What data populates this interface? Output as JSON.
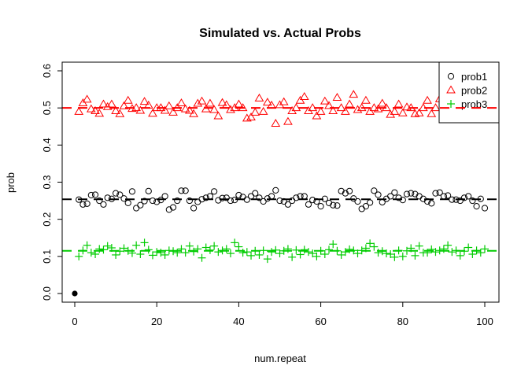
{
  "chart_data": {
    "type": "scatter",
    "title": "Simulated vs. Actual Probs",
    "xlabel": "num.repeat",
    "ylabel": "prob",
    "xlim": [
      0,
      100
    ],
    "ylim": [
      0,
      0.6
    ],
    "xticks": [
      "0",
      "20",
      "40",
      "60",
      "80",
      "100"
    ],
    "yticks": [
      "0.0",
      "0.1",
      "0.2",
      "0.3",
      "0.4",
      "0.5",
      "0.6"
    ],
    "legend_position": "top-right",
    "origin_point": {
      "x": 0,
      "y": 0
    },
    "series": [
      {
        "name": "prob1",
        "color": "#000000",
        "marker": "circle",
        "actual": 0.254,
        "values": [
          0.253,
          0.24,
          0.242,
          0.265,
          0.266,
          0.25,
          0.24,
          0.258,
          0.255,
          0.27,
          0.266,
          0.256,
          0.244,
          0.275,
          0.23,
          0.238,
          0.249,
          0.276,
          0.25,
          0.247,
          0.252,
          0.262,
          0.226,
          0.232,
          0.25,
          0.277,
          0.277,
          0.25,
          0.23,
          0.247,
          0.254,
          0.258,
          0.262,
          0.275,
          0.251,
          0.257,
          0.258,
          0.25,
          0.252,
          0.265,
          0.26,
          0.253,
          0.262,
          0.27,
          0.258,
          0.248,
          0.256,
          0.262,
          0.278,
          0.25,
          0.248,
          0.24,
          0.25,
          0.258,
          0.262,
          0.262,
          0.24,
          0.252,
          0.248,
          0.235,
          0.255,
          0.244,
          0.238,
          0.237,
          0.276,
          0.27,
          0.276,
          0.256,
          0.248,
          0.228,
          0.235,
          0.245,
          0.277,
          0.266,
          0.246,
          0.255,
          0.262,
          0.272,
          0.258,
          0.252,
          0.268,
          0.27,
          0.268,
          0.262,
          0.255,
          0.248,
          0.243,
          0.27,
          0.272,
          0.262,
          0.264,
          0.253,
          0.253,
          0.25,
          0.258,
          0.262,
          0.25,
          0.235,
          0.255,
          0.23
        ]
      },
      {
        "name": "prob2",
        "color": "#ff0000",
        "marker": "triangle",
        "actual": 0.5,
        "values": [
          0.49,
          0.513,
          0.523,
          0.497,
          0.492,
          0.485,
          0.51,
          0.503,
          0.51,
          0.492,
          0.484,
          0.505,
          0.52,
          0.498,
          0.5,
          0.493,
          0.517,
          0.507,
          0.485,
          0.5,
          0.5,
          0.493,
          0.505,
          0.488,
          0.5,
          0.513,
          0.497,
          0.493,
          0.484,
          0.512,
          0.518,
          0.497,
          0.512,
          0.495,
          0.478,
          0.514,
          0.508,
          0.495,
          0.5,
          0.51,
          0.5,
          0.472,
          0.475,
          0.488,
          0.526,
          0.49,
          0.515,
          0.507,
          0.458,
          0.508,
          0.516,
          0.463,
          0.492,
          0.5,
          0.52,
          0.53,
          0.492,
          0.5,
          0.478,
          0.49,
          0.518,
          0.506,
          0.492,
          0.528,
          0.5,
          0.49,
          0.51,
          0.536,
          0.495,
          0.5,
          0.52,
          0.49,
          0.5,
          0.497,
          0.512,
          0.5,
          0.482,
          0.49,
          0.51,
          0.486,
          0.502,
          0.5,
          0.484,
          0.486,
          0.5,
          0.52,
          0.484,
          0.5,
          0.524,
          0.502,
          0.508,
          0.5,
          0.484,
          0.5,
          0.512,
          0.5,
          0.52,
          0.503,
          0.5,
          0.51
        ]
      },
      {
        "name": "prob3",
        "color": "#00cc00",
        "marker": "plus",
        "actual": 0.115,
        "values": [
          0.1,
          0.116,
          0.13,
          0.11,
          0.106,
          0.12,
          0.118,
          0.128,
          0.123,
          0.104,
          0.114,
          0.122,
          0.115,
          0.109,
          0.13,
          0.106,
          0.137,
          0.118,
          0.103,
          0.112,
          0.11,
          0.104,
          0.116,
          0.114,
          0.11,
          0.12,
          0.11,
          0.128,
          0.113,
          0.12,
          0.096,
          0.124,
          0.117,
          0.128,
          0.112,
          0.116,
          0.12,
          0.108,
          0.137,
          0.126,
          0.11,
          0.112,
          0.102,
          0.115,
          0.104,
          0.116,
          0.093,
          0.112,
          0.117,
          0.108,
          0.115,
          0.12,
          0.098,
          0.117,
          0.105,
          0.118,
          0.112,
          0.108,
          0.1,
          0.115,
          0.106,
          0.118,
          0.133,
          0.115,
          0.104,
          0.112,
          0.119,
          0.116,
          0.108,
          0.116,
          0.122,
          0.135,
          0.126,
          0.11,
          0.114,
          0.108,
          0.106,
          0.098,
          0.116,
          0.1,
          0.115,
          0.122,
          0.102,
          0.128,
          0.11,
          0.11,
          0.119,
          0.112,
          0.116,
          0.12,
          0.13,
          0.112,
          0.116,
          0.102,
          0.114,
          0.124,
          0.106,
          0.116,
          0.11,
          0.12
        ]
      }
    ]
  }
}
